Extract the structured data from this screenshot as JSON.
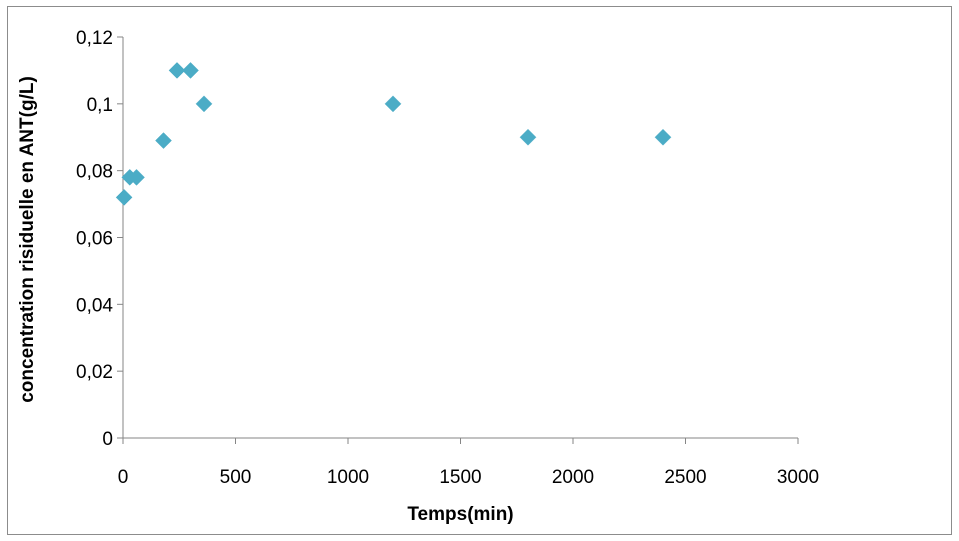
{
  "chart_data": {
    "type": "scatter",
    "title": "",
    "xlabel": "Temps(min)",
    "ylabel": "concentration risiduelle en ANT(g/L)",
    "xlim": [
      0,
      3000
    ],
    "ylim": [
      0,
      0.12
    ],
    "x_ticks": [
      0,
      500,
      1000,
      1500,
      2000,
      2500,
      3000
    ],
    "x_tick_labels": [
      "0",
      "500",
      "1000",
      "1500",
      "2000",
      "2500",
      "3000"
    ],
    "y_ticks": [
      0,
      0.02,
      0.04,
      0.06,
      0.08,
      0.1,
      0.12
    ],
    "y_tick_labels": [
      "0",
      "0,02",
      "0,04",
      "0,06",
      "0,08",
      "0,1",
      "0,12"
    ],
    "grid": false,
    "legend": "none",
    "marker": "diamond",
    "marker_color": "#4bacc6",
    "series": [
      {
        "x": [
          5,
          30,
          60,
          180,
          240,
          300,
          360,
          1200,
          1800,
          2400
        ],
        "y": [
          0.072,
          0.078,
          0.078,
          0.089,
          0.11,
          0.11,
          0.1,
          0.1,
          0.09,
          0.09
        ]
      }
    ]
  }
}
